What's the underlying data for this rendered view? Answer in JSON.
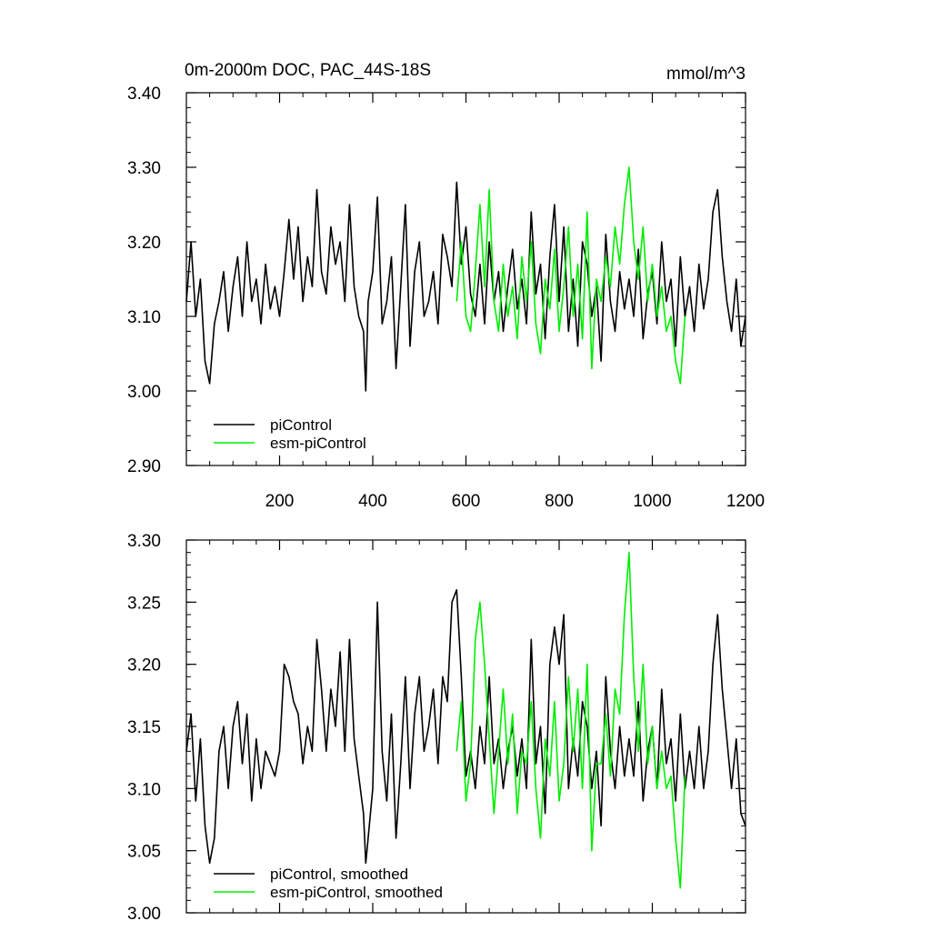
{
  "colors": {
    "picontrol": "#000000",
    "esm_picontrol": "#00ee00"
  },
  "chart_data": [
    {
      "type": "line",
      "title": "0m-2000m DOC, PAC_44S-18S",
      "units": "mmol/m^3",
      "xlim": [
        0,
        1200
      ],
      "ylim": [
        2.9,
        3.4
      ],
      "x_ticks": [
        200,
        400,
        600,
        800,
        1000,
        1200
      ],
      "x_tick_labels": [
        "200",
        "400",
        "600",
        "800",
        "1000",
        "1200"
      ],
      "y_ticks": [
        2.9,
        3.0,
        3.1,
        3.2,
        3.3,
        3.4
      ],
      "y_tick_labels": [
        "2.90",
        "3.00",
        "3.10",
        "3.20",
        "3.30",
        "3.40"
      ],
      "grid": false,
      "legend_placement": "bottom-left",
      "series": [
        {
          "name": "piControl",
          "color": "#000000",
          "x": [
            0,
            10,
            20,
            30,
            40,
            50,
            60,
            70,
            80,
            90,
            100,
            110,
            120,
            130,
            140,
            150,
            160,
            170,
            180,
            190,
            200,
            210,
            220,
            230,
            240,
            250,
            260,
            270,
            280,
            290,
            300,
            310,
            320,
            330,
            340,
            350,
            360,
            370,
            380,
            385,
            390,
            400,
            410,
            420,
            430,
            440,
            450,
            460,
            470,
            480,
            490,
            500,
            510,
            520,
            530,
            540,
            550,
            560,
            570,
            580,
            590,
            600,
            610,
            620,
            630,
            640,
            650,
            660,
            670,
            680,
            690,
            700,
            710,
            720,
            730,
            740,
            750,
            760,
            770,
            780,
            790,
            800,
            810,
            820,
            830,
            840,
            850,
            860,
            870,
            880,
            890,
            900,
            910,
            920,
            930,
            940,
            950,
            960,
            970,
            980,
            990,
            1000,
            1010,
            1020,
            1030,
            1040,
            1050,
            1060,
            1070,
            1080,
            1090,
            1100,
            1110,
            1120,
            1130,
            1140,
            1150,
            1160,
            1170,
            1180,
            1190,
            1200
          ],
          "values": [
            3.12,
            3.2,
            3.1,
            3.15,
            3.04,
            3.01,
            3.09,
            3.12,
            3.16,
            3.08,
            3.14,
            3.18,
            3.1,
            3.2,
            3.12,
            3.15,
            3.09,
            3.17,
            3.11,
            3.14,
            3.1,
            3.16,
            3.23,
            3.15,
            3.22,
            3.12,
            3.18,
            3.14,
            3.27,
            3.16,
            3.13,
            3.22,
            3.17,
            3.2,
            3.12,
            3.25,
            3.14,
            3.1,
            3.08,
            3.0,
            3.12,
            3.16,
            3.26,
            3.09,
            3.12,
            3.18,
            3.03,
            3.14,
            3.25,
            3.06,
            3.16,
            3.2,
            3.1,
            3.12,
            3.16,
            3.09,
            3.21,
            3.18,
            3.14,
            3.28,
            3.17,
            3.22,
            3.13,
            3.1,
            3.17,
            3.09,
            3.2,
            3.12,
            3.16,
            3.08,
            3.14,
            3.19,
            3.11,
            3.15,
            3.09,
            3.24,
            3.13,
            3.17,
            3.07,
            3.18,
            3.25,
            3.12,
            3.22,
            3.08,
            3.15,
            3.06,
            3.2,
            3.17,
            3.1,
            3.14,
            3.04,
            3.21,
            3.12,
            3.08,
            3.16,
            3.11,
            3.15,
            3.1,
            3.19,
            3.07,
            3.13,
            3.16,
            3.09,
            3.2,
            3.12,
            3.15,
            3.06,
            3.18,
            3.1,
            3.14,
            3.08,
            3.17,
            3.11,
            3.15,
            3.24,
            3.27,
            3.18,
            3.12,
            3.08,
            3.15,
            3.06,
            3.1
          ]
        },
        {
          "name": "esm-piControl",
          "color": "#00ee00",
          "x": [
            580,
            590,
            600,
            610,
            620,
            630,
            640,
            650,
            660,
            670,
            680,
            690,
            700,
            710,
            720,
            730,
            740,
            750,
            760,
            770,
            780,
            790,
            800,
            810,
            820,
            830,
            840,
            850,
            860,
            870,
            880,
            890,
            900,
            910,
            920,
            930,
            940,
            950,
            960,
            970,
            980,
            990,
            1000,
            1010,
            1020,
            1030,
            1040,
            1050,
            1060,
            1070
          ],
          "values": [
            3.12,
            3.2,
            3.1,
            3.08,
            3.16,
            3.25,
            3.14,
            3.27,
            3.12,
            3.08,
            3.17,
            3.1,
            3.14,
            3.07,
            3.18,
            3.12,
            3.2,
            3.09,
            3.05,
            3.15,
            3.11,
            3.19,
            3.08,
            3.14,
            3.22,
            3.1,
            3.17,
            3.07,
            3.24,
            3.03,
            3.15,
            3.12,
            3.18,
            3.14,
            3.22,
            3.17,
            3.25,
            3.3,
            3.2,
            3.15,
            3.22,
            3.12,
            3.17,
            3.1,
            3.14,
            3.08,
            3.1,
            3.04,
            3.01,
            3.1
          ]
        }
      ]
    },
    {
      "type": "line",
      "xlim": [
        0,
        1200
      ],
      "ylim": [
        3.0,
        3.3
      ],
      "x_ticks": [
        200,
        400,
        600,
        800,
        1000,
        1200
      ],
      "y_ticks": [
        3.0,
        3.05,
        3.1,
        3.15,
        3.2,
        3.25,
        3.3
      ],
      "y_tick_labels": [
        "3.00",
        "3.05",
        "3.10",
        "3.15",
        "3.20",
        "3.25",
        "3.30"
      ],
      "grid": false,
      "legend_placement": "bottom-left",
      "series": [
        {
          "name": "piControl, smoothed",
          "color": "#000000",
          "x": [
            0,
            10,
            20,
            30,
            40,
            50,
            60,
            70,
            80,
            90,
            100,
            110,
            120,
            130,
            140,
            150,
            160,
            170,
            180,
            190,
            200,
            210,
            220,
            230,
            240,
            250,
            260,
            270,
            280,
            290,
            300,
            310,
            320,
            330,
            340,
            350,
            360,
            370,
            380,
            385,
            390,
            400,
            410,
            420,
            430,
            440,
            450,
            460,
            470,
            480,
            490,
            500,
            510,
            520,
            530,
            540,
            550,
            560,
            570,
            580,
            590,
            600,
            610,
            620,
            630,
            640,
            650,
            660,
            670,
            680,
            690,
            700,
            710,
            720,
            730,
            740,
            750,
            760,
            770,
            780,
            790,
            800,
            810,
            820,
            830,
            840,
            850,
            860,
            870,
            880,
            890,
            900,
            910,
            920,
            930,
            940,
            950,
            960,
            970,
            980,
            990,
            1000,
            1010,
            1020,
            1030,
            1040,
            1050,
            1060,
            1070,
            1080,
            1090,
            1100,
            1110,
            1120,
            1130,
            1140,
            1150,
            1160,
            1170,
            1180,
            1190,
            1200
          ],
          "values": [
            3.13,
            3.16,
            3.09,
            3.14,
            3.07,
            3.04,
            3.06,
            3.13,
            3.15,
            3.1,
            3.15,
            3.17,
            3.12,
            3.16,
            3.09,
            3.14,
            3.1,
            3.13,
            3.12,
            3.11,
            3.13,
            3.2,
            3.19,
            3.17,
            3.16,
            3.12,
            3.15,
            3.13,
            3.22,
            3.18,
            3.13,
            3.18,
            3.15,
            3.21,
            3.13,
            3.22,
            3.14,
            3.11,
            3.08,
            3.04,
            3.06,
            3.1,
            3.25,
            3.13,
            3.09,
            3.16,
            3.06,
            3.12,
            3.19,
            3.1,
            3.16,
            3.19,
            3.13,
            3.15,
            3.18,
            3.12,
            3.19,
            3.17,
            3.25,
            3.26,
            3.19,
            3.11,
            3.13,
            3.1,
            3.15,
            3.12,
            3.19,
            3.12,
            3.14,
            3.1,
            3.13,
            3.15,
            3.11,
            3.14,
            3.1,
            3.22,
            3.12,
            3.15,
            3.08,
            3.2,
            3.23,
            3.2,
            3.24,
            3.1,
            3.14,
            3.11,
            3.17,
            3.15,
            3.1,
            3.13,
            3.07,
            3.19,
            3.13,
            3.1,
            3.15,
            3.11,
            3.14,
            3.11,
            3.17,
            3.09,
            3.13,
            3.15,
            3.1,
            3.18,
            3.12,
            3.14,
            3.09,
            3.16,
            3.1,
            3.13,
            3.1,
            3.15,
            3.1,
            3.13,
            3.2,
            3.24,
            3.18,
            3.14,
            3.1,
            3.14,
            3.08,
            3.07
          ]
        },
        {
          "name": "esm-piControl, smoothed",
          "color": "#00ee00",
          "x": [
            580,
            590,
            600,
            610,
            620,
            630,
            640,
            650,
            660,
            670,
            680,
            690,
            700,
            710,
            720,
            730,
            740,
            750,
            760,
            770,
            780,
            790,
            800,
            810,
            820,
            830,
            840,
            850,
            860,
            870,
            880,
            890,
            900,
            910,
            920,
            930,
            940,
            950,
            960,
            970,
            980,
            990,
            1000,
            1010,
            1020,
            1030,
            1040,
            1050,
            1060,
            1070
          ],
          "values": [
            3.13,
            3.17,
            3.09,
            3.12,
            3.22,
            3.25,
            3.2,
            3.14,
            3.08,
            3.13,
            3.18,
            3.12,
            3.16,
            3.08,
            3.13,
            3.12,
            3.17,
            3.1,
            3.06,
            3.14,
            3.11,
            3.17,
            3.09,
            3.12,
            3.19,
            3.13,
            3.18,
            3.1,
            3.2,
            3.05,
            3.12,
            3.12,
            3.16,
            3.11,
            3.18,
            3.16,
            3.24,
            3.29,
            3.19,
            3.13,
            3.2,
            3.12,
            3.15,
            3.1,
            3.13,
            3.1,
            3.11,
            3.06,
            3.02,
            3.11
          ]
        }
      ]
    }
  ]
}
